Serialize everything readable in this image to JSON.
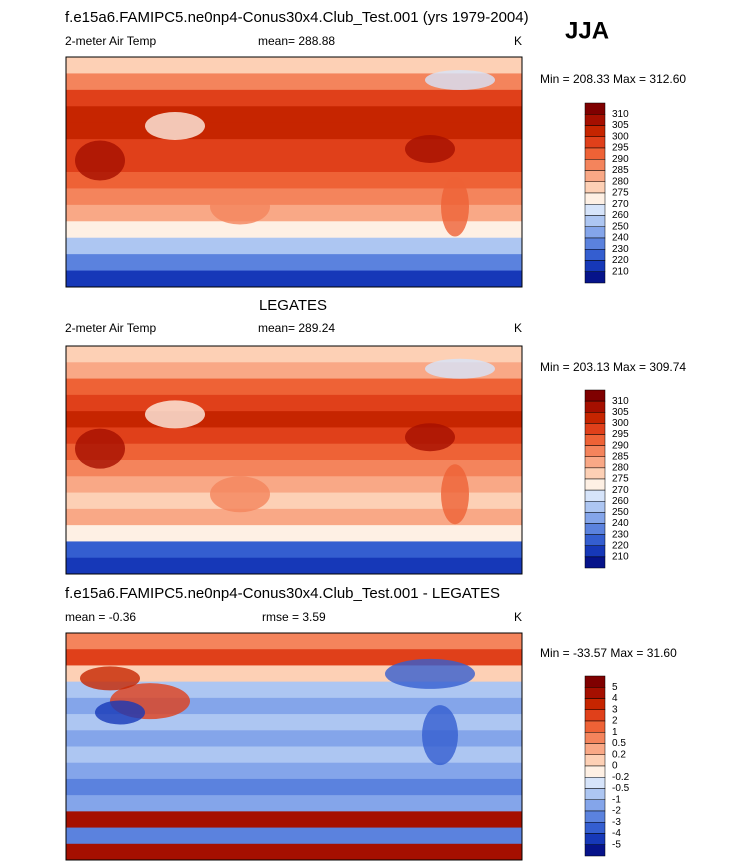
{
  "season": "JJA",
  "panels": [
    {
      "title": "f.e15a6.FAMIPC5.ne0np4-Conus30x4.Club_Test.001 (yrs 1979-2004)",
      "left": "2-meter Air Temp",
      "center": "mean= 288.88",
      "right": "K",
      "minmax": "Min = 208.33 Max = 312.60",
      "colorbar": {
        "labels": [
          "310",
          "305",
          "300",
          "295",
          "290",
          "285",
          "280",
          "275",
          "270",
          "260",
          "250",
          "240",
          "230",
          "220",
          "210"
        ],
        "colors": [
          "#7f0000",
          "#a50f00",
          "#c62500",
          "#e0401a",
          "#ee6236",
          "#f4845c",
          "#f9a886",
          "#fdd0b5",
          "#fef0e4",
          "#d6e4fa",
          "#adc6f2",
          "#84a5ea",
          "#5b82de",
          "#345ed0",
          "#1638b8",
          "#06138a"
        ]
      }
    },
    {
      "title": "LEGATES",
      "left": "2-meter Air Temp",
      "center": "mean= 289.24",
      "right": "K",
      "minmax": "Min = 203.13 Max = 309.74",
      "colorbar": {
        "labels": [
          "310",
          "305",
          "300",
          "295",
          "290",
          "285",
          "280",
          "275",
          "270",
          "260",
          "250",
          "240",
          "230",
          "220",
          "210"
        ],
        "colors": [
          "#7f0000",
          "#a50f00",
          "#c62500",
          "#e0401a",
          "#ee6236",
          "#f4845c",
          "#f9a886",
          "#fdd0b5",
          "#fef0e4",
          "#d6e4fa",
          "#adc6f2",
          "#84a5ea",
          "#5b82de",
          "#345ed0",
          "#1638b8",
          "#06138a"
        ]
      }
    },
    {
      "title": "f.e15a6.FAMIPC5.ne0np4-Conus30x4.Club_Test.001 - LEGATES",
      "left": "mean =  -0.36",
      "center": "rmse =  3.59",
      "right": "K",
      "minmax": "Min = -33.57 Max =  31.60",
      "colorbar": {
        "labels": [
          "5",
          "4",
          "3",
          "2",
          "1",
          "0.5",
          "0.2",
          "0",
          "-0.2",
          "-0.5",
          "-1",
          "-2",
          "-3",
          "-4",
          "-5"
        ],
        "colors": [
          "#7f0000",
          "#a50f00",
          "#c62500",
          "#e0401a",
          "#ee6236",
          "#f4845c",
          "#f9a886",
          "#fdd0b5",
          "#fef0e4",
          "#d6e4fa",
          "#adc6f2",
          "#84a5ea",
          "#5b82de",
          "#345ed0",
          "#1638b8",
          "#06138a"
        ]
      }
    }
  ]
}
